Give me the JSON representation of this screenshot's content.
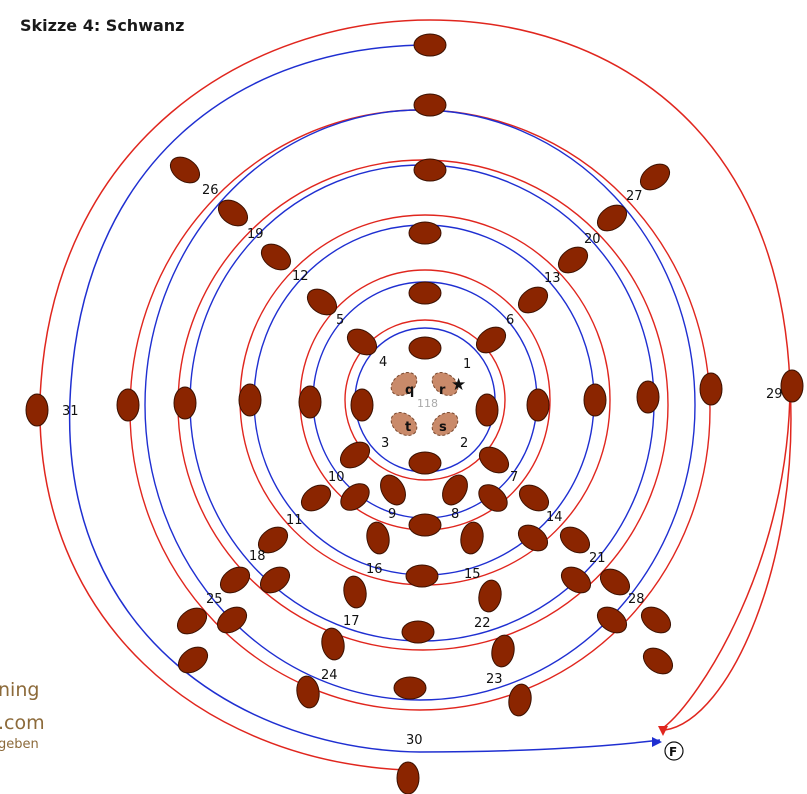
{
  "title": "Skizze 4: Schwanz",
  "bead_numbers": [
    "1",
    "2",
    "3",
    "4",
    "5",
    "6",
    "7",
    "8",
    "9",
    "10",
    "11",
    "12",
    "13",
    "14",
    "15",
    "16",
    "17",
    "18",
    "19",
    "20",
    "21",
    "22",
    "23",
    "24",
    "25",
    "26",
    "27",
    "28",
    "29",
    "30",
    "31"
  ],
  "center_letters": [
    "q",
    "r",
    "s",
    "t"
  ],
  "center_number": "118",
  "start_marker": "★",
  "finish_marker": "F",
  "watermark": [
    "ning",
    ".com",
    "geben"
  ],
  "colors": {
    "bead_fill": "#8b2500",
    "bead_center_fill": "#c98a6a",
    "thread_red": "#e0261e",
    "thread_blue": "#1f2fd1"
  }
}
